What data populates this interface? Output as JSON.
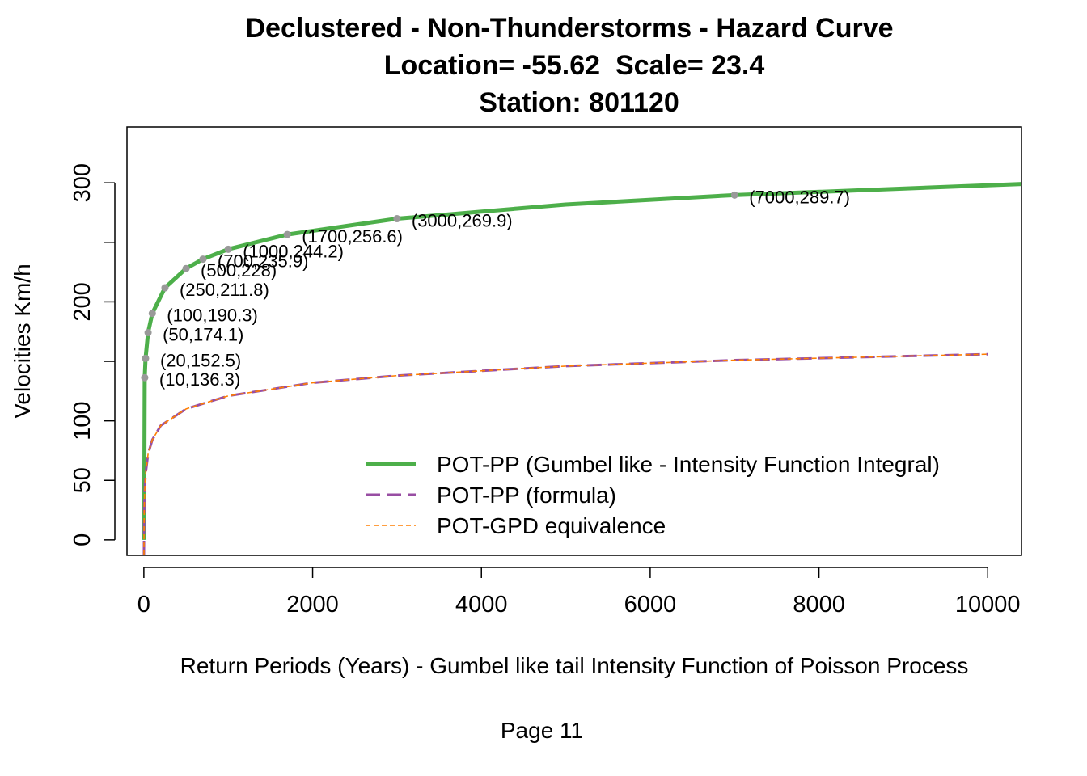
{
  "chart_data": {
    "type": "line",
    "title": "Declustered - Non-Thunderstorms - Hazard Curve",
    "subtitle": "Location= -55.62  Scale= 23.4",
    "subtitle2": "Station: 801120",
    "xlabel": "Return Periods (Years) - Gumbel like tail Intensity Function of Poisson Process",
    "ylabel": "Velocities Km/h",
    "xlim": [
      -200,
      10400
    ],
    "ylim": [
      -13,
      347
    ],
    "x_ticks": [
      0,
      2000,
      4000,
      6000,
      8000,
      10000
    ],
    "x_tick_labels": [
      "0",
      "2000",
      "4000",
      "6000",
      "8000",
      "10000"
    ],
    "y_ticks": [
      0,
      50,
      100,
      150,
      200,
      250,
      300
    ],
    "y_tick_labels": [
      "0",
      "50",
      "100",
      "",
      "200",
      "",
      "300"
    ],
    "grid": false,
    "legend_position": "bottom-right",
    "series": [
      {
        "name": "POT-PP (Gumbel like - Intensity Function Integral)",
        "color": "#4DAF4A",
        "style": "solid",
        "x": [
          1,
          2,
          3,
          5,
          10,
          20,
          50,
          100,
          250,
          500,
          700,
          1000,
          1700,
          3000,
          5000,
          7000,
          10400
        ],
        "y": [
          0,
          16.2,
          25.7,
          37.7,
          136.3,
          152.5,
          174.1,
          190.3,
          211.8,
          228,
          235.9,
          244.2,
          256.6,
          269.9,
          281.8,
          289.7,
          299
        ]
      },
      {
        "name": "POT-PP (formula)",
        "color": "#984EA3",
        "style": "dashed",
        "x": [
          1,
          2,
          5,
          10,
          20,
          50,
          100,
          200,
          500,
          1000,
          2000,
          3000,
          5000,
          7000,
          10000
        ],
        "y": [
          -13,
          5,
          28,
          42,
          55,
          72,
          84,
          96,
          110,
          121,
          132,
          138,
          146,
          151,
          156
        ]
      },
      {
        "name": "POT-GPD equivalence",
        "color": "#FF7F00",
        "style": "dotted",
        "x": [
          1,
          2,
          5,
          10,
          20,
          50,
          100,
          200,
          500,
          1000,
          2000,
          3000,
          5000,
          7000,
          10000
        ],
        "y": [
          -13,
          5,
          28,
          42,
          55,
          72,
          84,
          96,
          110,
          121,
          132,
          138,
          146,
          151,
          156
        ]
      }
    ],
    "points": {
      "color": "#999999",
      "x": [
        10,
        20,
        50,
        100,
        250,
        500,
        700,
        1000,
        1700,
        3000,
        7000
      ],
      "y": [
        136.3,
        152.5,
        174.1,
        190.3,
        211.8,
        228,
        235.9,
        244.2,
        256.6,
        269.9,
        289.7
      ]
    },
    "annotations": [
      {
        "x": 10,
        "y": 136.3,
        "text": "(10,136.3)"
      },
      {
        "x": 20,
        "y": 152.5,
        "text": "(20,152.5)"
      },
      {
        "x": 50,
        "y": 174.1,
        "text": "(50,174.1)"
      },
      {
        "x": 100,
        "y": 190.3,
        "text": "(100,190.3)"
      },
      {
        "x": 250,
        "y": 211.8,
        "text": "(250,211.8)"
      },
      {
        "x": 500,
        "y": 228,
        "text": "(500,228)"
      },
      {
        "x": 700,
        "y": 235.9,
        "text": "(700,235.9)"
      },
      {
        "x": 1000,
        "y": 244.2,
        "text": "(1000,244.2)"
      },
      {
        "x": 1700,
        "y": 256.6,
        "text": "(1700,256.6)"
      },
      {
        "x": 3000,
        "y": 269.9,
        "text": "(3000,269.9)"
      },
      {
        "x": 7000,
        "y": 289.7,
        "text": "(7000,289.7)"
      }
    ]
  },
  "footer": {
    "page_label": "Page 11"
  }
}
